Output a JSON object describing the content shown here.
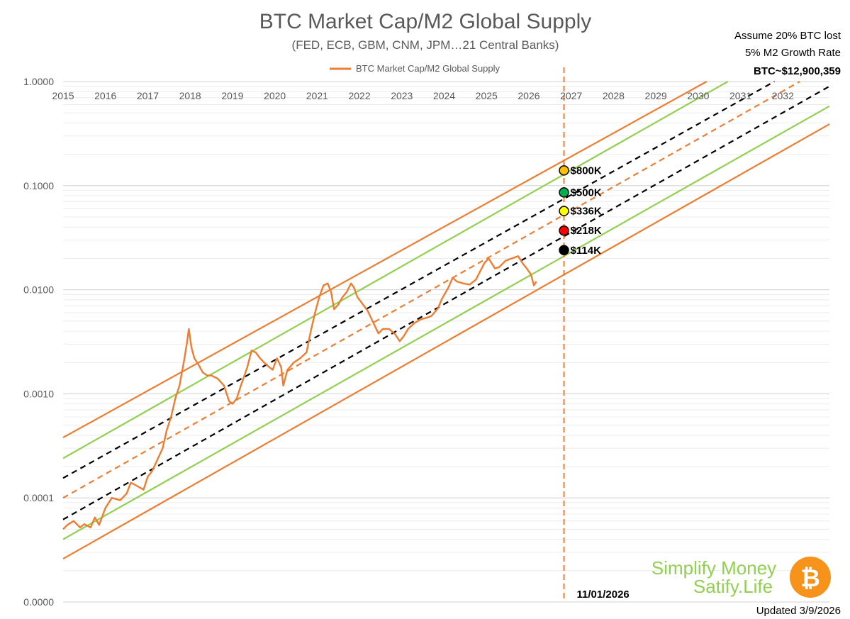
{
  "chart_data": {
    "type": "line",
    "title": "BTC Market Cap/M2 Global Supply",
    "subtitle": "(FED, ECB, GBM, CNM, JPM…21 Central Banks)",
    "legend": [
      {
        "name": "BTC Market Cap/M2 Global Supply",
        "color": "#ed7d31"
      }
    ],
    "x_ticks": [
      "2015",
      "2016",
      "2017",
      "2018",
      "2019",
      "2020",
      "2021",
      "2022",
      "2023",
      "2024",
      "2025",
      "2026",
      "2027",
      "2028",
      "2029",
      "2030",
      "2031",
      "2032"
    ],
    "y_ticks": [
      "1.0000",
      "0.1000",
      "0.0100",
      "0.0010",
      "0.0001",
      "0.0000"
    ],
    "xlim": [
      2015.0,
      2033.1
    ],
    "ylog_range": [
      -5,
      0
    ],
    "series": [
      {
        "name": "BTC Market Cap/M2 Global Supply",
        "color": "#ed7d31",
        "x": [
          2015.0,
          2015.1,
          2015.25,
          2015.4,
          2015.5,
          2015.65,
          2015.75,
          2015.85,
          2016.0,
          2016.15,
          2016.35,
          2016.5,
          2016.6,
          2016.75,
          2016.9,
          2017.0,
          2017.1,
          2017.2,
          2017.35,
          2017.45,
          2017.55,
          2017.65,
          2017.75,
          2017.85,
          2017.92,
          2017.97,
          2018.03,
          2018.1,
          2018.2,
          2018.3,
          2018.4,
          2018.5,
          2018.65,
          2018.8,
          2018.92,
          2019.0,
          2019.1,
          2019.2,
          2019.35,
          2019.45,
          2019.55,
          2019.65,
          2019.8,
          2019.95,
          2020.05,
          2020.15,
          2020.2,
          2020.3,
          2020.45,
          2020.6,
          2020.75,
          2020.85,
          2020.95,
          2021.05,
          2021.15,
          2021.25,
          2021.33,
          2021.4,
          2021.5,
          2021.6,
          2021.7,
          2021.8,
          2021.87,
          2021.95,
          2022.05,
          2022.2,
          2022.35,
          2022.45,
          2022.55,
          2022.7,
          2022.85,
          2022.95,
          2023.05,
          2023.15,
          2023.3,
          2023.45,
          2023.6,
          2023.7,
          2023.85,
          2023.95,
          2024.1,
          2024.2,
          2024.3,
          2024.45,
          2024.6,
          2024.75,
          2024.85,
          2024.95,
          2025.05,
          2025.2,
          2025.3,
          2025.45,
          2025.6,
          2025.75,
          2025.85,
          2025.95,
          2026.05,
          2026.12,
          2026.18
        ],
        "values": [
          5e-05,
          5.5e-05,
          6e-05,
          5.2e-05,
          5.6e-05,
          5.2e-05,
          6.5e-05,
          5.5e-05,
          8e-05,
          0.0001,
          9.5e-05,
          0.00011,
          0.00014,
          0.00013,
          0.00012,
          0.00016,
          0.00018,
          0.00022,
          0.0003,
          0.00045,
          0.0006,
          0.0009,
          0.0012,
          0.002,
          0.003,
          0.0042,
          0.0028,
          0.0022,
          0.0019,
          0.0016,
          0.0015,
          0.0015,
          0.0014,
          0.0012,
          0.00085,
          0.0008,
          0.0009,
          0.0012,
          0.0018,
          0.0026,
          0.0025,
          0.0022,
          0.0019,
          0.0017,
          0.0022,
          0.0018,
          0.0012,
          0.0017,
          0.002,
          0.0022,
          0.0025,
          0.004,
          0.006,
          0.0085,
          0.011,
          0.0115,
          0.0095,
          0.0065,
          0.0072,
          0.0085,
          0.0095,
          0.0115,
          0.0105,
          0.0085,
          0.0075,
          0.0062,
          0.0046,
          0.0038,
          0.0042,
          0.0042,
          0.0037,
          0.0032,
          0.0036,
          0.0042,
          0.0048,
          0.0052,
          0.0054,
          0.0056,
          0.0066,
          0.0082,
          0.0105,
          0.013,
          0.012,
          0.0115,
          0.0112,
          0.0125,
          0.015,
          0.018,
          0.02,
          0.016,
          0.0165,
          0.019,
          0.02,
          0.021,
          0.018,
          0.016,
          0.014,
          0.011,
          0.012
        ]
      }
    ],
    "bands": [
      {
        "name": "upper-orange-band",
        "color": "#ed7d31",
        "dashed": false,
        "x": [
          2015.0,
          2030.2
        ],
        "values": [
          0.00038,
          1.0
        ]
      },
      {
        "name": "upper-green-band",
        "color": "#92d050",
        "dashed": false,
        "x": [
          2015.0,
          2030.7
        ],
        "values": [
          0.00024,
          1.0
        ]
      },
      {
        "name": "upper-black-dashed-band",
        "color": "#000000",
        "dashed": true,
        "x": [
          2015.0,
          2031.8
        ],
        "values": [
          0.000155,
          1.0
        ]
      },
      {
        "name": "middle-orange-dashed-band",
        "color": "#ed7d31",
        "dashed": true,
        "x": [
          2015.0,
          2032.4
        ],
        "values": [
          0.0001,
          1.0
        ]
      },
      {
        "name": "lower-black-dashed-band",
        "color": "#000000",
        "dashed": true,
        "x": [
          2015.0,
          2033.1
        ],
        "values": [
          6.2e-05,
          0.9
        ]
      },
      {
        "name": "lower-green-band",
        "color": "#92d050",
        "dashed": false,
        "x": [
          2015.0,
          2033.1
        ],
        "values": [
          4e-05,
          0.58
        ]
      },
      {
        "name": "lower-orange-band",
        "color": "#ed7d31",
        "dashed": false,
        "x": [
          2015.0,
          2033.1
        ],
        "values": [
          2.6e-05,
          0.39
        ]
      }
    ],
    "reference_line": {
      "x": 2026.83,
      "label": "11/01/2026",
      "color": "#ed7d31"
    },
    "price_targets": [
      {
        "label": "$800K",
        "value": 0.14,
        "color": "#ffc000"
      },
      {
        "label": "$500K",
        "value": 0.086,
        "color": "#00b050"
      },
      {
        "label": "$336K",
        "value": 0.057,
        "color": "#ffff00"
      },
      {
        "label": "$218K",
        "value": 0.037,
        "color": "#ff0000"
      },
      {
        "label": "$114K",
        "value": 0.024,
        "color": "#000000"
      }
    ]
  },
  "annotations": {
    "assumption_line1": "Assume 20% BTC lost",
    "assumption_line2": "5% M2 Growth Rate",
    "btc_target": "BTC~$12,900,359",
    "updated": "Updated 3/9/2026"
  },
  "brand": {
    "line1": "Simplify Money",
    "line2": "Satify.Life",
    "btc_symbol": "₿",
    "text_color": "#92d050",
    "coin_color": "#f7931a"
  }
}
